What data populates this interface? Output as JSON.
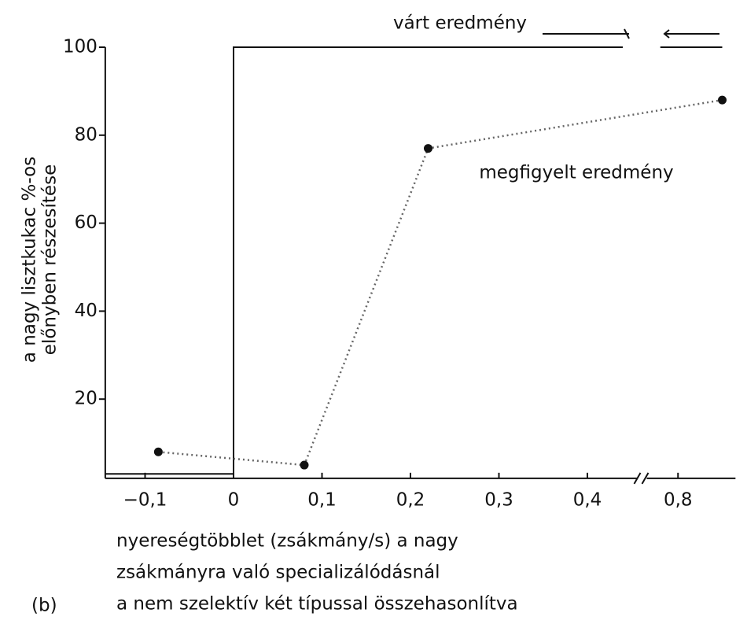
{
  "chart_data": {
    "type": "line",
    "panel_label": "(b)",
    "y_label": [
      "a nagy lisztkukac %-os",
      "előnyben részesítése"
    ],
    "x_label": [
      "nyereségtöbblet (zsákmány/s) a nagy",
      "zsákmányra való specializálódásnál",
      "a nem szelektív két típussal összehasonlítva"
    ],
    "xlim": [
      -0.145,
      0.865
    ],
    "x_break": [
      0.46,
      0.77
    ],
    "ylim": [
      2,
      100
    ],
    "xticks": [
      {
        "value": -0.1,
        "label": "−0,1"
      },
      0,
      {
        "value": 0.1,
        "label": "0,1"
      },
      {
        "value": 0.2,
        "label": "0,2"
      },
      {
        "value": 0.3,
        "label": "0,3"
      },
      {
        "value": 0.4,
        "label": "0,4"
      },
      {
        "value": 0.8,
        "label": "0,8"
      }
    ],
    "yticks": [
      20,
      40,
      60,
      80,
      100
    ],
    "grid": false,
    "series": [
      {
        "name": "várt eredmény",
        "color": "#111111",
        "style": "solid",
        "x": [
          -0.145,
          0,
          0,
          0.44,
          0.44,
          0.78,
          0.85
        ],
        "values": [
          3,
          3,
          100,
          100,
          null,
          100,
          100
        ]
      },
      {
        "name": "megfigyelt eredmény",
        "color": "#666666",
        "style": "dotted",
        "markers": true,
        "x": [
          -0.085,
          0.08,
          0.22,
          0.85
        ],
        "values": [
          8,
          5,
          77,
          88
        ]
      }
    ]
  }
}
